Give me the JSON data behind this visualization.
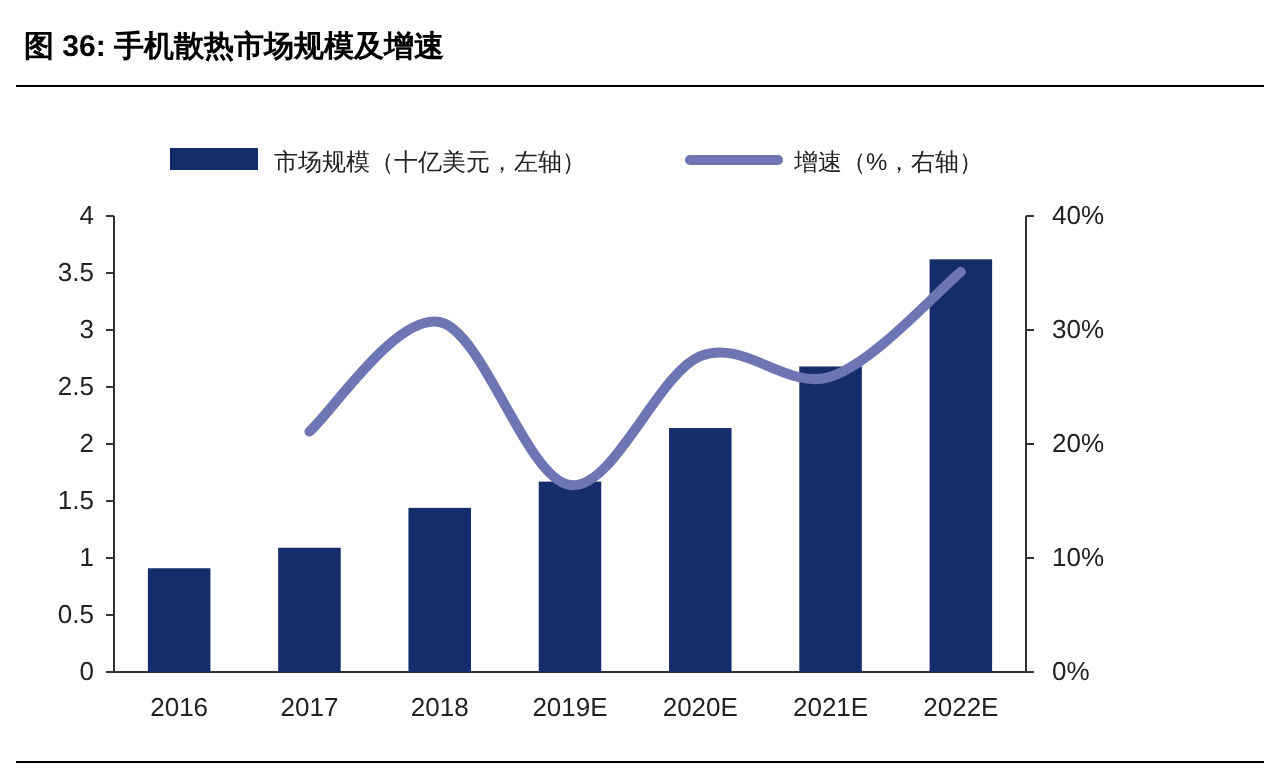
{
  "chart_data": {
    "type": "bar",
    "title": "图 36: 手机散热市场规模及增速",
    "categories": [
      "2016",
      "2017",
      "2018",
      "2019E",
      "2020E",
      "2021E",
      "2022E"
    ],
    "series": [
      {
        "name": "市场规模（十亿美元，左轴）",
        "color": "#152d6b",
        "values": [
          0.91,
          1.09,
          1.44,
          1.67,
          2.14,
          2.68,
          3.62
        ]
      },
      {
        "name": "增速（%，右轴）",
        "type": "line",
        "axis": "y2",
        "color": "#6e75b3",
        "values": [
          null,
          21.1,
          30.7,
          16.4,
          27.7,
          25.9,
          35.1
        ]
      }
    ],
    "ylim": [
      0,
      4
    ],
    "yticks": [
      0,
      0.5,
      1,
      1.5,
      2,
      2.5,
      3,
      3.5,
      4
    ],
    "y2lim": [
      0,
      40
    ],
    "y2ticks": [
      {
        "value": 0,
        "label": "0%"
      },
      {
        "value": 10,
        "label": "10%"
      },
      {
        "value": 20,
        "label": "20%"
      },
      {
        "value": 30,
        "label": "30%"
      },
      {
        "value": 40,
        "label": "40%"
      }
    ],
    "legend": "top",
    "grid": false
  }
}
